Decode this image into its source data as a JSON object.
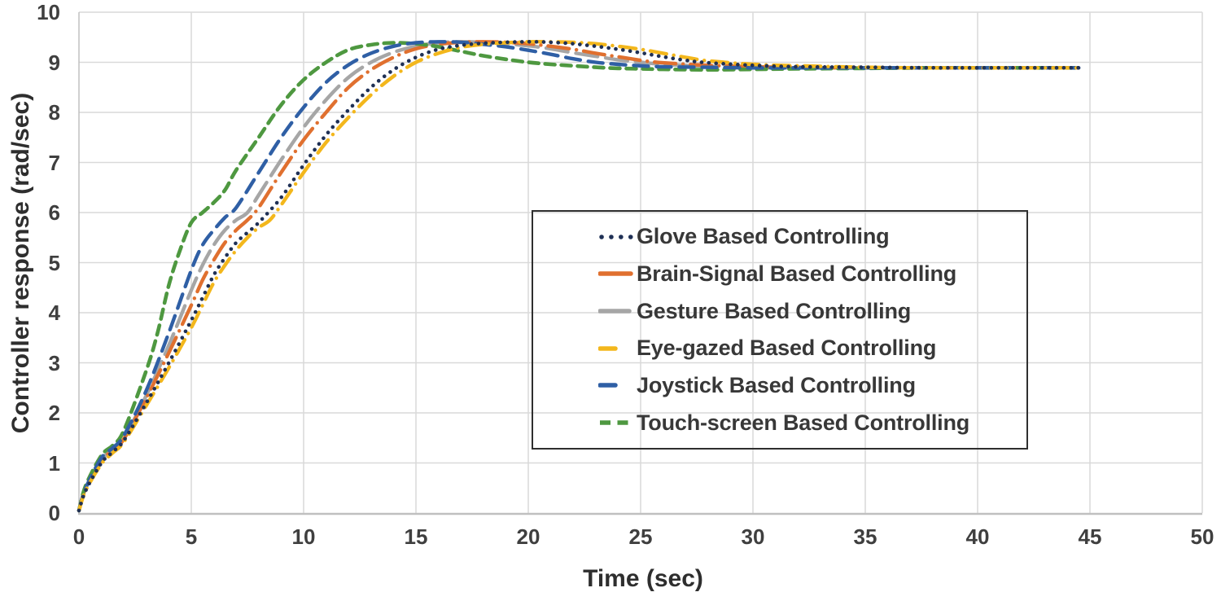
{
  "chart_data": {
    "type": "line",
    "title": "",
    "xlabel": "Time (sec)",
    "ylabel": "Controller response (rad/sec)",
    "xlim": [
      0,
      50
    ],
    "ylim": [
      0,
      10
    ],
    "x_ticks": [
      0,
      5,
      10,
      15,
      20,
      25,
      30,
      35,
      40,
      45,
      50
    ],
    "y_ticks": [
      0,
      1,
      2,
      3,
      4,
      5,
      6,
      7,
      8,
      9,
      10
    ],
    "grid": "on",
    "legend_position": "boxed, center-right, transparent background",
    "steady_state_value": 8.89,
    "peak_value": 9.4,
    "colors": {
      "grid": "#d9d9d9",
      "axis": "#c0c0c0",
      "tick_text": "#3f3f3f",
      "legend_border": "#2f2f2f"
    },
    "series": [
      {
        "name": "Glove Based Controlling",
        "color": "#1F3055",
        "style": "dotted",
        "points": [
          [
            0,
            0.05
          ],
          [
            0.3,
            0.45
          ],
          [
            1,
            1.0
          ],
          [
            1.5,
            1.22
          ],
          [
            2,
            1.45
          ],
          [
            3,
            2.2
          ],
          [
            4,
            3.0
          ],
          [
            5,
            3.85
          ],
          [
            5.5,
            4.3
          ],
          [
            6,
            4.75
          ],
          [
            6.5,
            5.1
          ],
          [
            7,
            5.4
          ],
          [
            7.5,
            5.6
          ],
          [
            8,
            5.8
          ],
          [
            9,
            6.3
          ],
          [
            10,
            6.95
          ],
          [
            11,
            7.55
          ],
          [
            12,
            8.05
          ],
          [
            13,
            8.5
          ],
          [
            14,
            8.85
          ],
          [
            15,
            9.1
          ],
          [
            16,
            9.26
          ],
          [
            17,
            9.34
          ],
          [
            18,
            9.38
          ],
          [
            19,
            9.4
          ],
          [
            20,
            9.41
          ],
          [
            21,
            9.4
          ],
          [
            22,
            9.37
          ],
          [
            23,
            9.32
          ],
          [
            24,
            9.26
          ],
          [
            25,
            9.19
          ],
          [
            26,
            9.11
          ],
          [
            27,
            9.04
          ],
          [
            28,
            8.99
          ],
          [
            30,
            8.94
          ],
          [
            32,
            8.91
          ],
          [
            35,
            8.9
          ],
          [
            38,
            8.89
          ],
          [
            41,
            8.89
          ],
          [
            44.5,
            8.89
          ]
        ]
      },
      {
        "name": "Brain-Signal Based Controlling",
        "color": "#E0702F",
        "style": "long-dash-dot",
        "points": [
          [
            0,
            0.05
          ],
          [
            0.3,
            0.5
          ],
          [
            1,
            1.05
          ],
          [
            1.5,
            1.25
          ],
          [
            2,
            1.48
          ],
          [
            3,
            2.3
          ],
          [
            4,
            3.2
          ],
          [
            5,
            4.15
          ],
          [
            5.5,
            4.65
          ],
          [
            6,
            5.05
          ],
          [
            6.5,
            5.4
          ],
          [
            7,
            5.65
          ],
          [
            7.5,
            5.85
          ],
          [
            8,
            6.1
          ],
          [
            9,
            6.8
          ],
          [
            10,
            7.45
          ],
          [
            11,
            8.0
          ],
          [
            12,
            8.5
          ],
          [
            13,
            8.85
          ],
          [
            14,
            9.1
          ],
          [
            15,
            9.27
          ],
          [
            16,
            9.36
          ],
          [
            17,
            9.4
          ],
          [
            18,
            9.41
          ],
          [
            19,
            9.4
          ],
          [
            20,
            9.37
          ],
          [
            21,
            9.32
          ],
          [
            22,
            9.26
          ],
          [
            23,
            9.18
          ],
          [
            24,
            9.11
          ],
          [
            25,
            9.04
          ],
          [
            26,
            8.99
          ],
          [
            28,
            8.94
          ],
          [
            30,
            8.91
          ],
          [
            32,
            8.9
          ],
          [
            35,
            8.89
          ],
          [
            38,
            8.89
          ],
          [
            41,
            8.89
          ],
          [
            44.5,
            8.89
          ]
        ]
      },
      {
        "name": "Gesture Based Controlling",
        "color": "#A6A6A6",
        "style": "long-dash",
        "points": [
          [
            0,
            0.05
          ],
          [
            0.3,
            0.5
          ],
          [
            1,
            1.05
          ],
          [
            1.5,
            1.28
          ],
          [
            2,
            1.5
          ],
          [
            3,
            2.35
          ],
          [
            4,
            3.35
          ],
          [
            5,
            4.45
          ],
          [
            5.5,
            4.95
          ],
          [
            6,
            5.35
          ],
          [
            6.5,
            5.65
          ],
          [
            7,
            5.85
          ],
          [
            7.5,
            6.0
          ],
          [
            8,
            6.35
          ],
          [
            9,
            7.05
          ],
          [
            10,
            7.7
          ],
          [
            11,
            8.25
          ],
          [
            12,
            8.7
          ],
          [
            13,
            9.0
          ],
          [
            14,
            9.2
          ],
          [
            15,
            9.32
          ],
          [
            16,
            9.39
          ],
          [
            17,
            9.41
          ],
          [
            18,
            9.4
          ],
          [
            19,
            9.37
          ],
          [
            20,
            9.33
          ],
          [
            21,
            9.27
          ],
          [
            22,
            9.19
          ],
          [
            23,
            9.12
          ],
          [
            24,
            9.05
          ],
          [
            25,
            9.0
          ],
          [
            26,
            8.96
          ],
          [
            28,
            8.92
          ],
          [
            30,
            8.9
          ],
          [
            32,
            8.89
          ],
          [
            35,
            8.89
          ],
          [
            38,
            8.89
          ],
          [
            41,
            8.89
          ],
          [
            44.5,
            8.89
          ]
        ]
      },
      {
        "name": "Eye-gazed Based Controlling",
        "color": "#F3B71C",
        "style": "dash-dot",
        "points": [
          [
            0,
            0.05
          ],
          [
            0.3,
            0.45
          ],
          [
            1,
            0.98
          ],
          [
            1.5,
            1.2
          ],
          [
            2,
            1.42
          ],
          [
            3,
            2.15
          ],
          [
            4,
            2.9
          ],
          [
            5,
            3.7
          ],
          [
            5.5,
            4.15
          ],
          [
            6,
            4.6
          ],
          [
            6.5,
            4.95
          ],
          [
            7,
            5.25
          ],
          [
            7.5,
            5.5
          ],
          [
            8,
            5.7
          ],
          [
            8.5,
            5.85
          ],
          [
            9,
            6.15
          ],
          [
            10,
            6.8
          ],
          [
            11,
            7.4
          ],
          [
            12,
            7.9
          ],
          [
            13,
            8.35
          ],
          [
            14,
            8.72
          ],
          [
            15,
            9.0
          ],
          [
            16,
            9.18
          ],
          [
            17,
            9.3
          ],
          [
            18,
            9.36
          ],
          [
            19,
            9.39
          ],
          [
            20,
            9.41
          ],
          [
            21,
            9.41
          ],
          [
            22,
            9.4
          ],
          [
            23,
            9.37
          ],
          [
            24,
            9.32
          ],
          [
            25,
            9.26
          ],
          [
            26,
            9.18
          ],
          [
            27,
            9.1
          ],
          [
            28,
            9.03
          ],
          [
            30,
            8.96
          ],
          [
            32,
            8.93
          ],
          [
            35,
            8.9
          ],
          [
            38,
            8.89
          ],
          [
            41,
            8.89
          ],
          [
            44.5,
            8.89
          ]
        ]
      },
      {
        "name": "Joystick Based Controlling",
        "color": "#2F5FA5",
        "style": "dash",
        "points": [
          [
            0,
            0.05
          ],
          [
            0.3,
            0.5
          ],
          [
            1,
            1.1
          ],
          [
            1.5,
            1.3
          ],
          [
            2,
            1.55
          ],
          [
            3,
            2.45
          ],
          [
            4,
            3.6
          ],
          [
            5,
            4.85
          ],
          [
            5.5,
            5.35
          ],
          [
            6,
            5.65
          ],
          [
            6.5,
            5.9
          ],
          [
            7,
            6.1
          ],
          [
            8,
            6.8
          ],
          [
            9,
            7.5
          ],
          [
            10,
            8.1
          ],
          [
            11,
            8.6
          ],
          [
            12,
            8.95
          ],
          [
            13,
            9.18
          ],
          [
            14,
            9.32
          ],
          [
            15,
            9.39
          ],
          [
            16,
            9.41
          ],
          [
            17,
            9.4
          ],
          [
            18,
            9.36
          ],
          [
            19,
            9.31
          ],
          [
            20,
            9.24
          ],
          [
            21,
            9.16
          ],
          [
            22,
            9.07
          ],
          [
            23,
            9.0
          ],
          [
            24,
            8.96
          ],
          [
            25,
            8.93
          ],
          [
            26,
            8.91
          ],
          [
            28,
            8.9
          ],
          [
            30,
            8.89
          ],
          [
            32,
            8.89
          ],
          [
            35,
            8.89
          ],
          [
            38,
            8.89
          ],
          [
            41,
            8.89
          ],
          [
            44.5,
            8.89
          ]
        ]
      },
      {
        "name": "Touch-screen Based Controlling",
        "color": "#4E9840",
        "style": "short-dash",
        "points": [
          [
            0,
            0.05
          ],
          [
            0.3,
            0.55
          ],
          [
            1,
            1.15
          ],
          [
            1.5,
            1.35
          ],
          [
            2,
            1.65
          ],
          [
            3,
            2.85
          ],
          [
            3.5,
            3.6
          ],
          [
            4,
            4.55
          ],
          [
            4.5,
            5.25
          ],
          [
            5,
            5.8
          ],
          [
            5.5,
            6.0
          ],
          [
            6,
            6.2
          ],
          [
            6.5,
            6.45
          ],
          [
            7,
            6.85
          ],
          [
            8,
            7.5
          ],
          [
            9,
            8.15
          ],
          [
            10,
            8.65
          ],
          [
            11,
            9.0
          ],
          [
            12,
            9.25
          ],
          [
            13,
            9.35
          ],
          [
            14,
            9.39
          ],
          [
            15,
            9.37
          ],
          [
            16,
            9.31
          ],
          [
            17,
            9.22
          ],
          [
            18,
            9.13
          ],
          [
            19,
            9.06
          ],
          [
            20,
            9.0
          ],
          [
            21,
            8.96
          ],
          [
            22,
            8.93
          ],
          [
            23,
            8.9
          ],
          [
            24,
            8.88
          ],
          [
            25,
            8.87
          ],
          [
            26,
            8.86
          ],
          [
            28,
            8.85
          ],
          [
            30,
            8.86
          ],
          [
            32,
            8.87
          ],
          [
            35,
            8.88
          ],
          [
            38,
            8.89
          ],
          [
            41,
            8.89
          ],
          [
            44.5,
            8.89
          ]
        ]
      }
    ]
  }
}
